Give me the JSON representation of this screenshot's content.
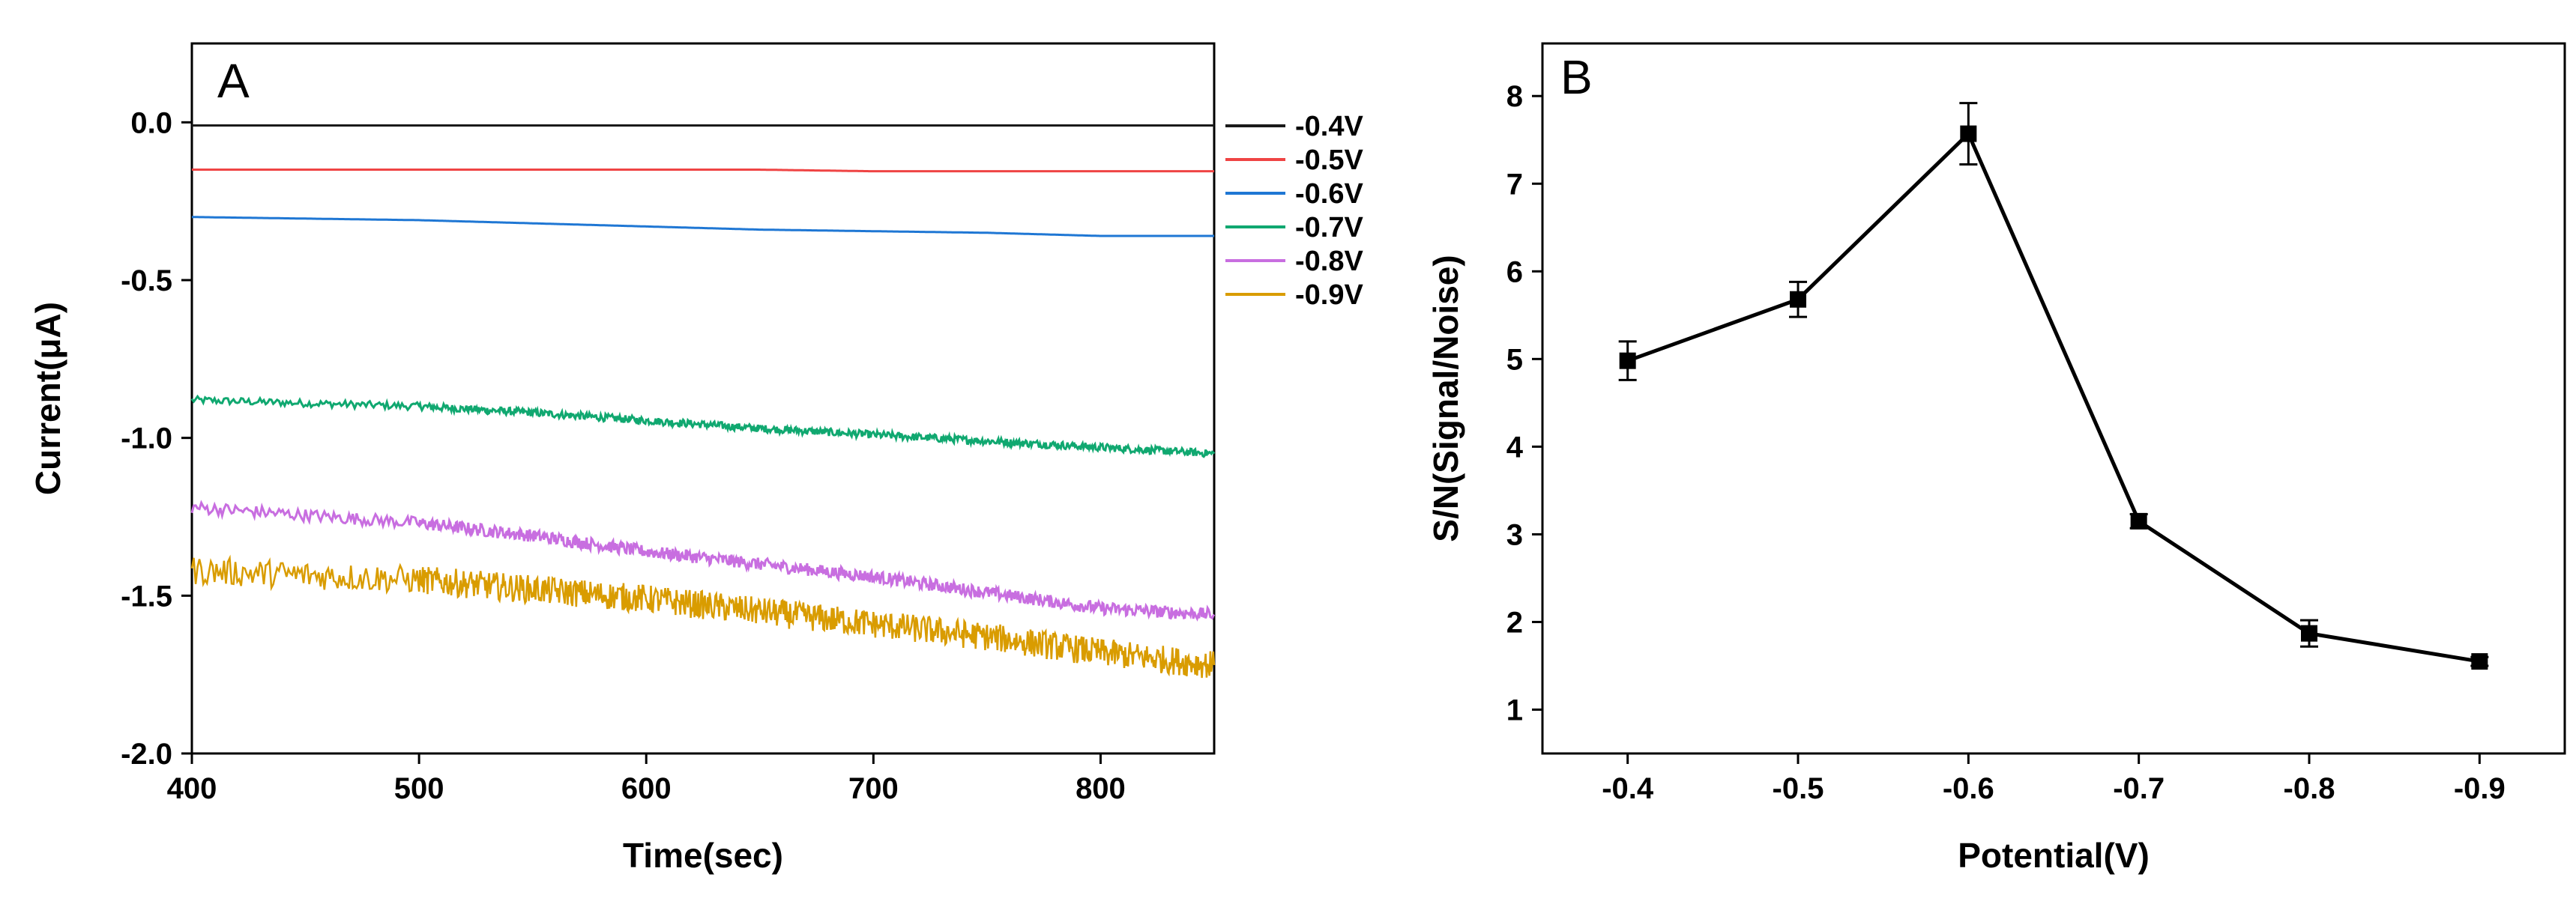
{
  "figure": {
    "panels": [
      "A",
      "B"
    ]
  },
  "chart_data": [
    {
      "type": "line",
      "panel": "A",
      "title": "",
      "xlabel": "Time(sec)",
      "ylabel": "Current(μA)",
      "xlim": [
        400,
        850
      ],
      "ylim": [
        -2.0,
        0.25
      ],
      "xticks": [
        400,
        500,
        600,
        700,
        800
      ],
      "yticks": [
        0.0,
        -0.5,
        -1.0,
        -1.5,
        -2.0
      ],
      "xtick_labels": [
        "400",
        "500",
        "600",
        "700",
        "800"
      ],
      "ytick_labels": [
        "0.0",
        "-0.5",
        "-1.0",
        "-1.5",
        "-2.0"
      ],
      "legend_position": "right",
      "series": [
        {
          "name": "-0.4V",
          "color": "#1a1a1a",
          "noise": 0.0,
          "x": [
            400,
            500,
            550,
            600,
            650,
            700,
            750,
            800,
            850
          ],
          "y": [
            -0.01,
            -0.01,
            -0.01,
            -0.01,
            -0.01,
            -0.01,
            -0.01,
            -0.01,
            -0.01
          ]
        },
        {
          "name": "-0.5V",
          "color": "#ef4444",
          "noise": 0.0,
          "x": [
            400,
            500,
            550,
            600,
            650,
            700,
            750,
            800,
            850
          ],
          "y": [
            -0.15,
            -0.15,
            -0.15,
            -0.15,
            -0.15,
            -0.155,
            -0.155,
            -0.155,
            -0.155
          ]
        },
        {
          "name": "-0.6V",
          "color": "#1f77d4",
          "noise": 0.0,
          "x": [
            400,
            500,
            550,
            600,
            650,
            700,
            750,
            800,
            850
          ],
          "y": [
            -0.3,
            -0.31,
            -0.32,
            -0.33,
            -0.34,
            -0.345,
            -0.35,
            -0.36,
            -0.36
          ]
        },
        {
          "name": "-0.7V",
          "color": "#10a870",
          "noise": 0.012,
          "x": [
            400,
            500,
            550,
            600,
            650,
            700,
            750,
            800,
            850
          ],
          "y": [
            -0.88,
            -0.9,
            -0.92,
            -0.945,
            -0.97,
            -0.99,
            -1.01,
            -1.03,
            -1.05
          ]
        },
        {
          "name": "-0.8V",
          "color": "#c86ee0",
          "noise": 0.02,
          "x": [
            400,
            500,
            550,
            600,
            650,
            700,
            750,
            800,
            850
          ],
          "y": [
            -1.22,
            -1.27,
            -1.31,
            -1.36,
            -1.4,
            -1.44,
            -1.49,
            -1.54,
            -1.56
          ]
        },
        {
          "name": "-0.9V",
          "color": "#d99c00",
          "noise": 0.045,
          "x": [
            400,
            500,
            550,
            600,
            650,
            700,
            750,
            800,
            850
          ],
          "y": [
            -1.42,
            -1.45,
            -1.48,
            -1.51,
            -1.55,
            -1.59,
            -1.63,
            -1.68,
            -1.72
          ]
        }
      ]
    },
    {
      "type": "line",
      "panel": "B",
      "title": "",
      "xlabel": "Potential(V)",
      "ylabel": "S/N(Signal/Noise)",
      "xlim": [
        -0.35,
        -0.95
      ],
      "ylim": [
        0.5,
        8.6
      ],
      "xticks": [
        -0.4,
        -0.5,
        -0.6,
        -0.7,
        -0.8,
        -0.9
      ],
      "yticks": [
        1,
        2,
        3,
        4,
        5,
        6,
        7,
        8
      ],
      "xtick_labels": [
        "-0.4",
        "-0.5",
        "-0.6",
        "-0.7",
        "-0.8",
        "-0.9"
      ],
      "ytick_labels": [
        "1",
        "2",
        "3",
        "4",
        "5",
        "6",
        "7",
        "8"
      ],
      "series": [
        {
          "name": "S/N",
          "color": "#000000",
          "x": [
            -0.4,
            -0.5,
            -0.6,
            -0.7,
            -0.8,
            -0.9
          ],
          "y": [
            4.98,
            5.68,
            7.57,
            3.15,
            1.87,
            1.55
          ],
          "error": [
            0.22,
            0.2,
            0.35,
            0.08,
            0.15,
            0.05
          ]
        }
      ]
    }
  ]
}
